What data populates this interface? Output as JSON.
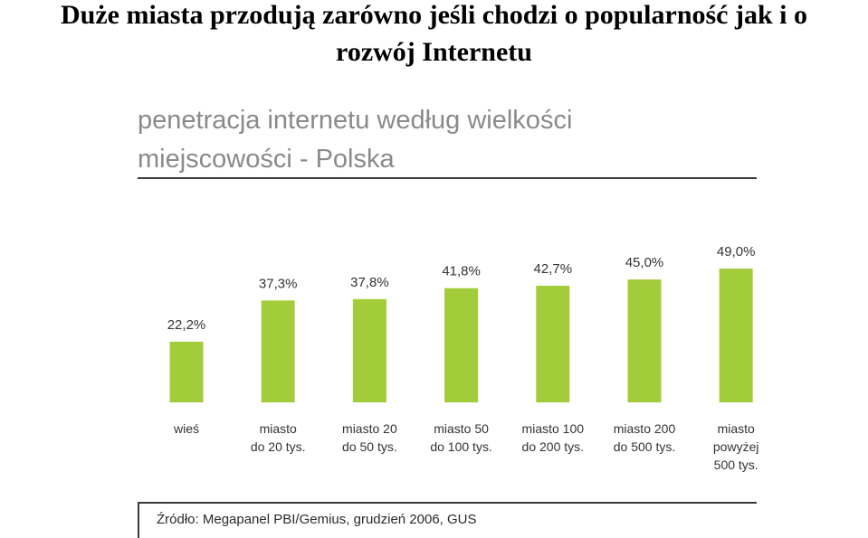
{
  "slide": {
    "title_line1": "Duże miasta przodują zarówno jeśli chodzi o popularność jak i o",
    "title_line2": "rozwój Internetu"
  },
  "chart_data": {
    "type": "bar",
    "title_line1": "penetracja internetu według wielkości",
    "title_line2": "miejscowości - Polska",
    "categories": [
      "wieś",
      "miasto\ndo 20 tys.",
      "miasto 20\ndo 50 tys.",
      "miasto 50\ndo 100 tys.",
      "miasto 100\ndo 200 tys.",
      "miasto 200\ndo 500 tys.",
      "miasto\npowyżej\n500 tys."
    ],
    "values": [
      22.2,
      37.3,
      37.8,
      41.8,
      42.7,
      45.0,
      49.0
    ],
    "data_labels": [
      "22,2%",
      "37,3%",
      "37,8%",
      "41,8%",
      "42,7%",
      "45,0%",
      "49,0%"
    ],
    "unit": "%",
    "ylim": [
      0,
      49
    ],
    "grid": false,
    "legend": "none",
    "bar_color": "#a3cc3a",
    "source": "Źródło: Megapanel PBI/Gemius, grudzień 2006, GUS"
  }
}
